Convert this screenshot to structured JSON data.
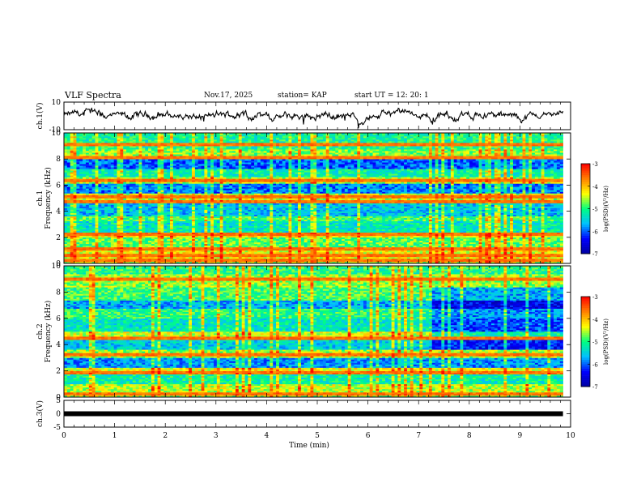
{
  "header": {
    "title": "VLF Spectra",
    "date": "Nov.17, 2025",
    "station": "station= KAP",
    "start": "start  UT =   12: 20: 1"
  },
  "chart_data": [
    {
      "type": "line",
      "name": "ch1-waveform",
      "ylabel": "ch.1(V)",
      "ylim": [
        -10,
        10
      ],
      "yticks": [
        10,
        -10
      ],
      "xlim": [
        0,
        10
      ],
      "x_end": 9.85,
      "series": [
        {
          "name": "ch.1",
          "color": "#000000",
          "trend": "noisy around 0, amplitude ~4 V"
        }
      ]
    },
    {
      "type": "heatmap",
      "name": "ch1-spectrogram",
      "ylabel": "ch.1\nFrequency (kHz)",
      "ylabel_line1": "ch.1",
      "ylabel_line2": "Frequency (kHz)",
      "ylim": [
        0,
        10
      ],
      "yticks": [
        0,
        2,
        4,
        6,
        8,
        10
      ],
      "xlim": [
        0,
        10
      ],
      "x_end": 9.85,
      "bands": [
        {
          "f0": 0.0,
          "f1": 0.4,
          "level": -4.6
        },
        {
          "f0": 0.4,
          "f1": 1.2,
          "level": -4.3
        },
        {
          "f0": 1.2,
          "f1": 2.0,
          "level": -4.8
        },
        {
          "f0": 2.0,
          "f1": 2.4,
          "level": -4.2
        },
        {
          "f0": 2.4,
          "f1": 3.2,
          "level": -5.3
        },
        {
          "f0": 3.2,
          "f1": 3.6,
          "level": -4.9
        },
        {
          "f0": 3.6,
          "f1": 4.8,
          "level": -5.6
        },
        {
          "f0": 4.8,
          "f1": 5.4,
          "level": -4.5
        },
        {
          "f0": 5.4,
          "f1": 6.1,
          "level": -5.9
        },
        {
          "f0": 6.1,
          "f1": 6.6,
          "level": -4.6
        },
        {
          "f0": 6.6,
          "f1": 7.3,
          "level": -5.2
        },
        {
          "f0": 7.3,
          "f1": 8.0,
          "level": -6.0
        },
        {
          "f0": 8.0,
          "f1": 8.8,
          "level": -4.7
        },
        {
          "f0": 8.8,
          "f1": 10.0,
          "level": -5.1
        }
      ],
      "lines_khz": [
        0.2,
        0.6,
        1.1,
        2.2,
        4.8,
        5.1,
        6.4,
        8.1,
        9.1
      ],
      "colorbar": {
        "ticks": [
          -3,
          -4,
          -5,
          -6,
          -7
        ],
        "label": "log(PSD)(V²/Hz)",
        "range": [
          -7,
          -3
        ]
      }
    },
    {
      "type": "heatmap",
      "name": "ch2-spectrogram",
      "ylabel": "ch.2\nFrequency (kHz)",
      "ylabel_line1": "ch.2",
      "ylabel_line2": "Frequency (kHz)",
      "ylim": [
        0,
        10
      ],
      "yticks": [
        0,
        2,
        4,
        6,
        8,
        10
      ],
      "xlim": [
        0,
        10
      ],
      "x_end": 9.85,
      "bands": [
        {
          "f0": 0.0,
          "f1": 0.4,
          "level": -4.7
        },
        {
          "f0": 0.4,
          "f1": 1.0,
          "level": -4.5
        },
        {
          "f0": 1.0,
          "f1": 1.8,
          "level": -5.2
        },
        {
          "f0": 1.8,
          "f1": 2.2,
          "level": -4.3
        },
        {
          "f0": 2.2,
          "f1": 3.0,
          "level": -5.8
        },
        {
          "f0": 3.0,
          "f1": 3.6,
          "level": -4.6
        },
        {
          "f0": 3.6,
          "f1": 4.4,
          "level": -5.5
        },
        {
          "f0": 4.4,
          "f1": 5.0,
          "level": -4.4
        },
        {
          "f0": 5.0,
          "f1": 6.0,
          "level": -5.3
        },
        {
          "f0": 6.0,
          "f1": 6.8,
          "level": -5.0
        },
        {
          "f0": 6.8,
          "f1": 7.4,
          "level": -5.7
        },
        {
          "f0": 7.4,
          "f1": 8.4,
          "level": -4.9
        },
        {
          "f0": 8.4,
          "f1": 9.4,
          "level": -4.6
        },
        {
          "f0": 9.4,
          "f1": 10.0,
          "level": -5.0
        }
      ],
      "lines_khz": [
        0.2,
        1.9,
        3.3,
        4.5,
        9.0
      ],
      "regime_change_min": 7.2,
      "colorbar": {
        "ticks": [
          -3,
          -4,
          -5,
          -6,
          -7
        ],
        "label": "log(PSD)(V²/Hz)",
        "range": [
          -7,
          -3
        ]
      }
    },
    {
      "type": "line",
      "name": "ch3-waveform",
      "ylabel": "ch.3(V)",
      "ylim": [
        -5,
        5
      ],
      "yticks": [
        5,
        0,
        -5
      ],
      "xlim": [
        0,
        10
      ],
      "x_end": 9.85,
      "series": [
        {
          "name": "ch.3",
          "color": "#000000",
          "trend": "flat band near 0 V"
        }
      ]
    }
  ],
  "xaxis": {
    "label": "Time  (min)",
    "ticks": [
      "0",
      "1",
      "2",
      "3",
      "4",
      "5",
      "6",
      "7",
      "8",
      "9",
      "10"
    ]
  },
  "colors": {
    "colormap": [
      "#0000a0",
      "#0000ff",
      "#00c0ff",
      "#00ff80",
      "#ffff00",
      "#ff8000",
      "#ff0000",
      "#ffffff"
    ]
  }
}
